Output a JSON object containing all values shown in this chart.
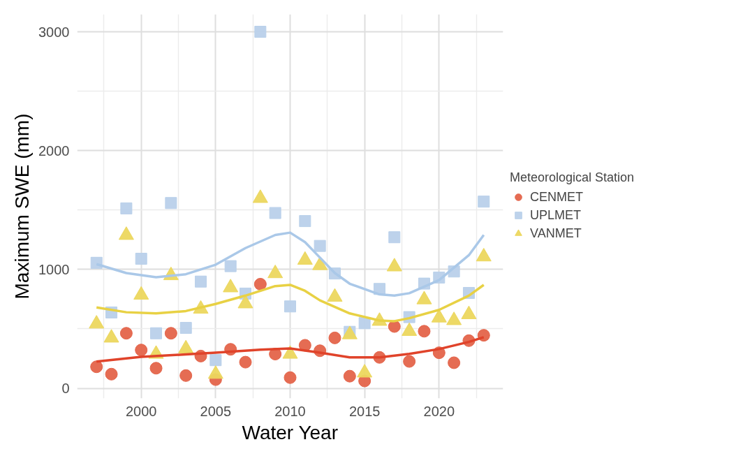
{
  "chart_data": {
    "type": "scatter",
    "xlabel": "Water Year",
    "ylabel": "Maximum SWE (mm)",
    "legend_title": "Meteorological Station",
    "x": [
      1997,
      1998,
      1999,
      2000,
      2001,
      2002,
      2003,
      2004,
      2005,
      2006,
      2007,
      2008,
      2009,
      2010,
      2011,
      2012,
      2013,
      2014,
      2015,
      2016,
      2017,
      2018,
      2019,
      2020,
      2021,
      2022,
      2023
    ],
    "series": [
      {
        "name": "CENMET",
        "color": "#e4644a",
        "marker": "circle",
        "values": [
          181,
          119,
          463,
          322,
          169,
          463,
          107,
          271,
          73,
          328,
          220,
          876,
          288,
          90,
          362,
          316,
          424,
          102,
          62,
          260,
          520,
          226,
          480,
          299,
          215,
          401,
          446
        ]
      },
      {
        "name": "UPLMET",
        "color": "#b9d0ea",
        "marker": "square",
        "values": [
          1056,
          638,
          1514,
          1090,
          463,
          1559,
          508,
          898,
          237,
          1028,
          797,
          3000,
          1475,
          689,
          1407,
          1198,
          966,
          475,
          548,
          836,
          1271,
          599,
          881,
          932,
          983,
          802,
          1571
        ]
      },
      {
        "name": "VANMET",
        "color": "#ecd75e",
        "marker": "triangle",
        "values": [
          542,
          424,
          1288,
          785,
          288,
          949,
          333,
          667,
          119,
          847,
          712,
          1599,
          966,
          288,
          1079,
          1034,
          768,
          452,
          130,
          565,
          1023,
          480,
          746,
          593,
          571,
          621,
          1107
        ]
      },
      {
        "type": "line",
        "color": "#e0432a",
        "x": [
          1997,
          2000,
          2003,
          2005,
          2008,
          2010,
          2012,
          2014,
          2016,
          2018,
          2020,
          2022,
          2023
        ],
        "values": [
          225,
          265,
          285,
          300,
          325,
          335,
          300,
          260,
          260,
          290,
          330,
          390,
          430
        ]
      },
      {
        "type": "line",
        "color": "#aac8e8",
        "x": [
          1997,
          1999,
          2001,
          2003,
          2005,
          2007,
          2009,
          2010,
          2011,
          2012,
          2013,
          2014,
          2016,
          2017,
          2018,
          2020,
          2022,
          2023
        ],
        "values": [
          1045,
          970,
          935,
          960,
          1040,
          1180,
          1290,
          1310,
          1230,
          1100,
          970,
          880,
          790,
          780,
          800,
          910,
          1120,
          1290
        ]
      },
      {
        "type": "line",
        "color": "#e8d144",
        "x": [
          1997,
          1999,
          2001,
          2003,
          2005,
          2007,
          2009,
          2010,
          2011,
          2012,
          2014,
          2016,
          2017,
          2018,
          2020,
          2022,
          2023
        ],
        "values": [
          680,
          640,
          630,
          650,
          710,
          780,
          860,
          870,
          820,
          740,
          630,
          570,
          565,
          590,
          660,
          780,
          870
        ]
      }
    ],
    "xlim": [
      1995.7,
      2024.3
    ],
    "ylim": [
      -85,
      3147
    ],
    "xticks": [
      2000,
      2005,
      2010,
      2015,
      2020
    ],
    "yticks": [
      0,
      1000,
      2000,
      3000
    ],
    "grid": true,
    "legend": "right",
    "line_style": "solid"
  }
}
